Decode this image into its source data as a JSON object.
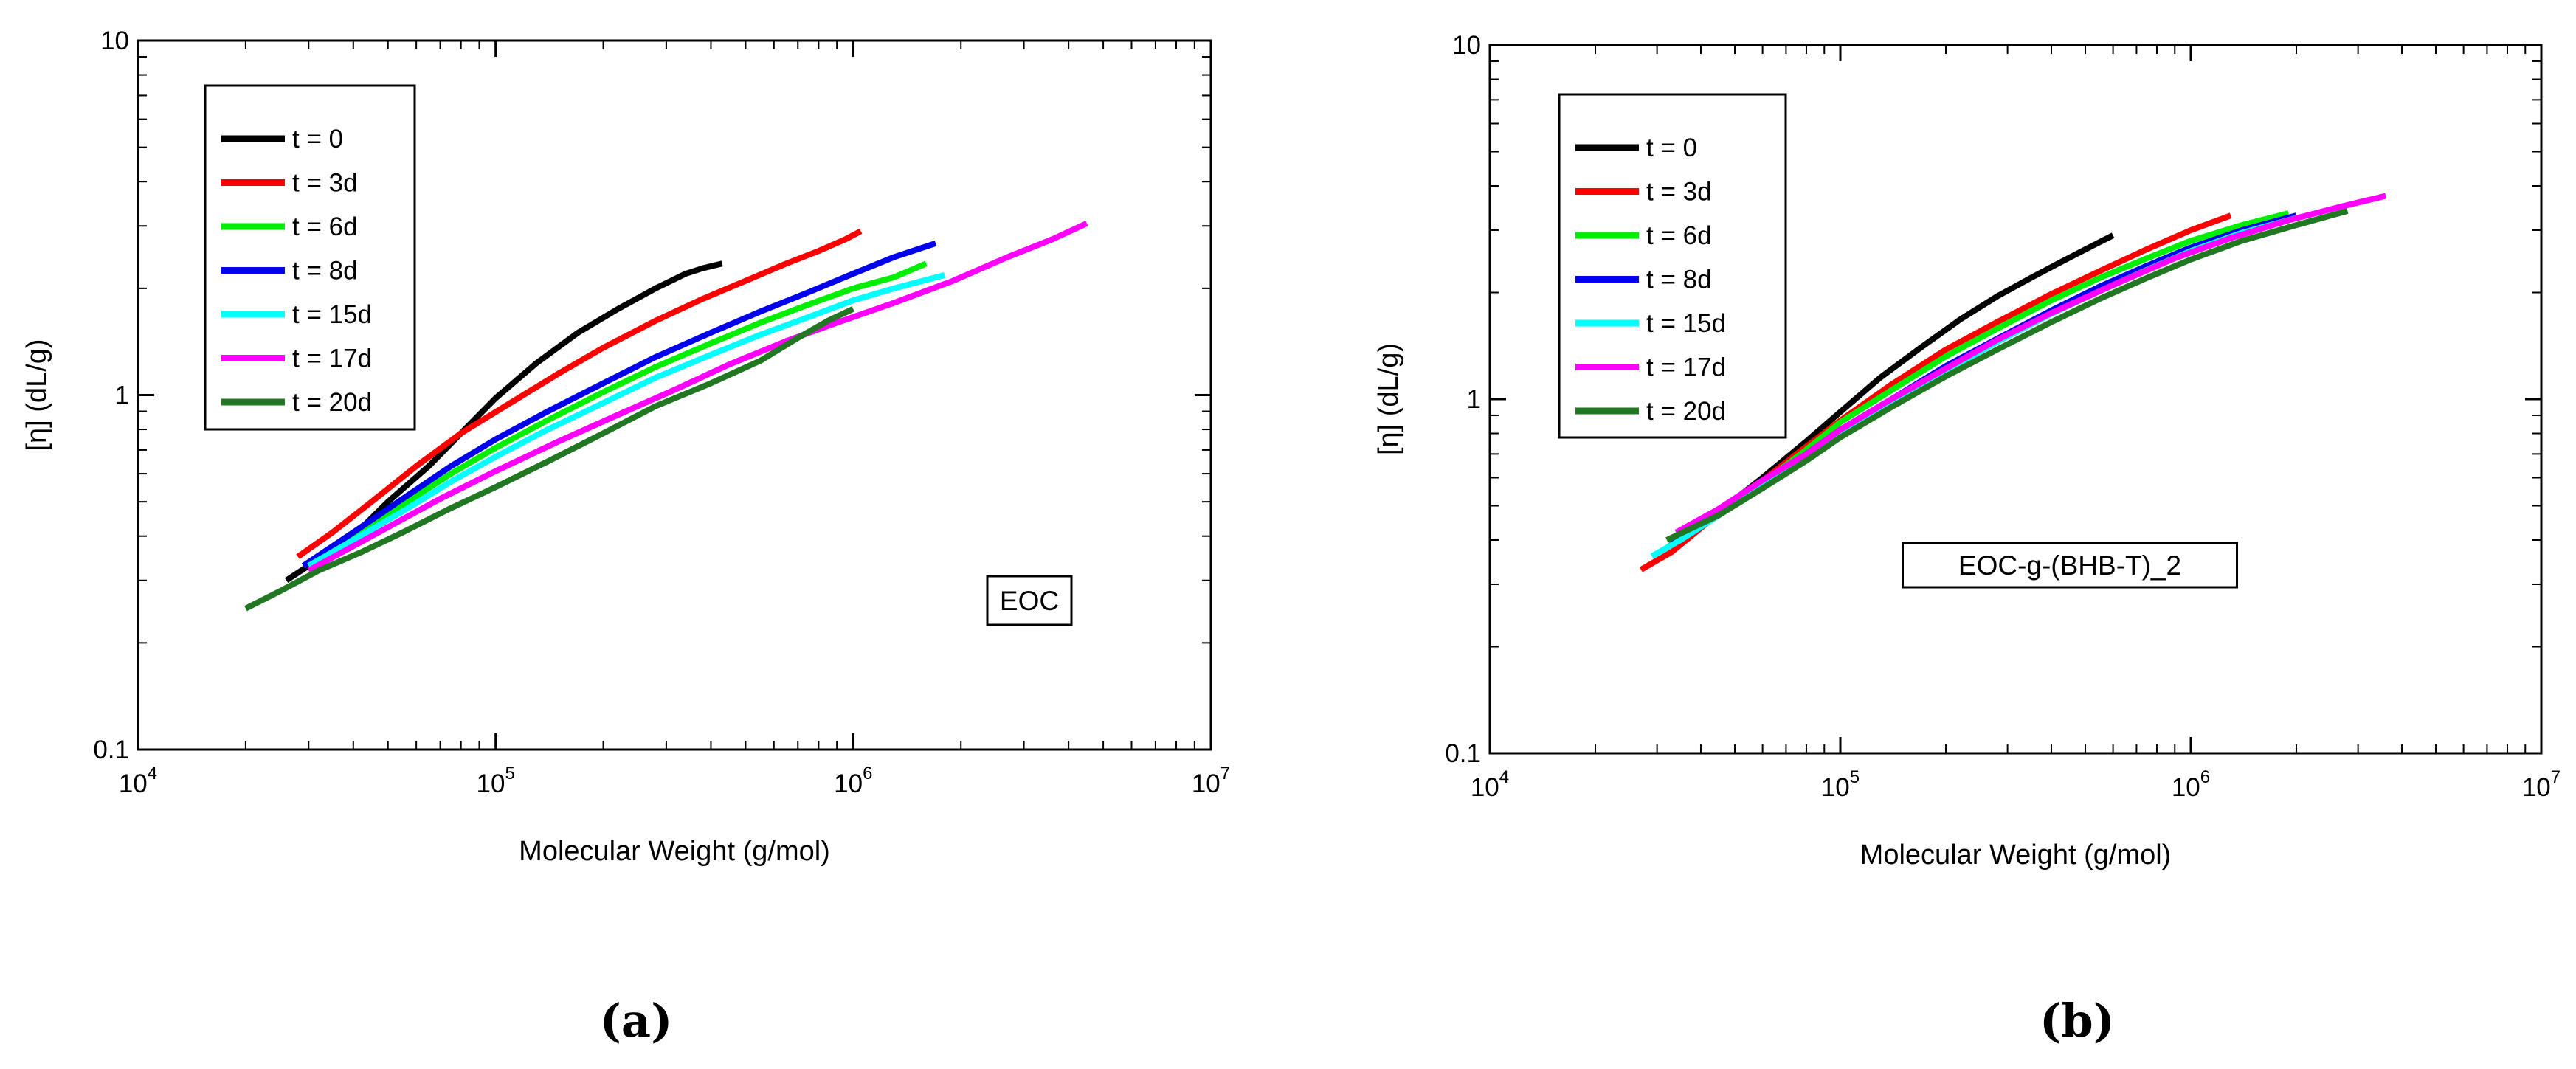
{
  "colors": {
    "t = 0": "#000000",
    "t = 3d": "#ff0000",
    "t = 6d": "#00ee00",
    "t = 8d": "#0000ee",
    "t = 15d": "#00ffff",
    "t = 17d": "#ff00ff",
    "t = 20d": "#227722"
  },
  "chart_data": [
    {
      "type": "line",
      "title": "EOC",
      "panel_label": "(a)",
      "xlabel": "Molecular Weight (g/mol)",
      "ylabel": "[η] (dL/g)",
      "xscale": "log",
      "yscale": "log",
      "xlim": [
        10000,
        10000000
      ],
      "ylim": [
        0.1,
        10
      ],
      "x_ticks": [
        {
          "base": "10",
          "exp": "4",
          "value": 10000
        },
        {
          "base": "10",
          "exp": "5",
          "value": 100000
        },
        {
          "base": "10",
          "exp": "6",
          "value": 1000000
        },
        {
          "base": "10",
          "exp": "7",
          "value": 10000000
        }
      ],
      "y_ticks": [
        {
          "label": "0.1",
          "value": 0.1
        },
        {
          "label": "1",
          "value": 1
        },
        {
          "label": "10",
          "value": 10
        }
      ],
      "legend_position": "top-left",
      "annotation": "EOC",
      "series": [
        {
          "name": "t = 0",
          "x": [
            26000,
            30000,
            34000,
            40000,
            50000,
            65000,
            80000,
            100000,
            130000,
            170000,
            220000,
            280000,
            340000,
            380000,
            430000
          ],
          "y": [
            0.3,
            0.33,
            0.36,
            0.4,
            0.5,
            0.63,
            0.78,
            0.98,
            1.23,
            1.5,
            1.75,
            2.0,
            2.2,
            2.28,
            2.35
          ]
        },
        {
          "name": "t = 3d",
          "x": [
            28000,
            35000,
            45000,
            60000,
            80000,
            110000,
            150000,
            200000,
            280000,
            380000,
            500000,
            650000,
            800000,
            950000,
            1050000
          ],
          "y": [
            0.35,
            0.41,
            0.5,
            0.63,
            0.78,
            0.95,
            1.15,
            1.36,
            1.62,
            1.87,
            2.1,
            2.35,
            2.55,
            2.75,
            2.9
          ]
        },
        {
          "name": "t = 6d",
          "x": [
            29000,
            40000,
            55000,
            75000,
            100000,
            140000,
            200000,
            280000,
            400000,
            550000,
            750000,
            1000000,
            1300000,
            1600000
          ],
          "y": [
            0.33,
            0.4,
            0.49,
            0.6,
            0.71,
            0.85,
            1.02,
            1.2,
            1.4,
            1.6,
            1.8,
            2.0,
            2.15,
            2.35
          ]
        },
        {
          "name": "t = 8d",
          "x": [
            29000,
            40000,
            55000,
            75000,
            100000,
            140000,
            200000,
            280000,
            400000,
            550000,
            750000,
            1000000,
            1300000,
            1700000
          ],
          "y": [
            0.33,
            0.41,
            0.51,
            0.63,
            0.75,
            0.9,
            1.08,
            1.28,
            1.5,
            1.72,
            1.95,
            2.2,
            2.45,
            2.68
          ]
        },
        {
          "name": "t = 15d",
          "x": [
            30000,
            40000,
            55000,
            75000,
            100000,
            140000,
            200000,
            280000,
            400000,
            550000,
            750000,
            1000000,
            1300000,
            1800000
          ],
          "y": [
            0.33,
            0.39,
            0.47,
            0.57,
            0.67,
            0.8,
            0.95,
            1.12,
            1.3,
            1.48,
            1.66,
            1.85,
            2.0,
            2.18
          ]
        },
        {
          "name": "t = 17d",
          "x": [
            30000,
            45000,
            70000,
            100000,
            150000,
            220000,
            320000,
            450000,
            650000,
            900000,
            1300000,
            1900000,
            2700000,
            3600000,
            4500000
          ],
          "y": [
            0.32,
            0.4,
            0.51,
            0.61,
            0.74,
            0.88,
            1.04,
            1.22,
            1.42,
            1.6,
            1.82,
            2.1,
            2.45,
            2.75,
            3.05
          ]
        },
        {
          "name": "t = 20d",
          "x": [
            20000,
            25000,
            32000,
            42000,
            55000,
            75000,
            100000,
            140000,
            200000,
            280000,
            400000,
            550000,
            700000,
            850000,
            1000000
          ],
          "y": [
            0.25,
            0.28,
            0.32,
            0.36,
            0.41,
            0.48,
            0.55,
            0.65,
            0.78,
            0.93,
            1.08,
            1.25,
            1.45,
            1.62,
            1.75
          ]
        }
      ]
    },
    {
      "type": "line",
      "title": "EOC-g-(BHB-T)_2",
      "panel_label": "(b)",
      "xlabel": "Molecular Weight (g/mol)",
      "ylabel": "[η] (dL/g)",
      "xscale": "log",
      "yscale": "log",
      "xlim": [
        10000,
        10000000
      ],
      "ylim": [
        0.1,
        10
      ],
      "x_ticks": [
        {
          "base": "10",
          "exp": "4",
          "value": 10000
        },
        {
          "base": "10",
          "exp": "5",
          "value": 100000
        },
        {
          "base": "10",
          "exp": "6",
          "value": 1000000
        },
        {
          "base": "10",
          "exp": "7",
          "value": 10000000
        }
      ],
      "y_ticks": [
        {
          "label": "0.1",
          "value": 0.1
        },
        {
          "label": "1",
          "value": 1
        },
        {
          "label": "10",
          "value": 10
        }
      ],
      "legend_position": "top-left",
      "annotation": "EOC-g-(BHB-T)_2",
      "series": [
        {
          "name": "t = 0",
          "x": [
            32000,
            45000,
            60000,
            80000,
            100000,
            130000,
            170000,
            220000,
            280000,
            350000,
            430000,
            520000,
            600000
          ],
          "y": [
            0.38,
            0.48,
            0.6,
            0.76,
            0.92,
            1.15,
            1.4,
            1.68,
            1.95,
            2.2,
            2.45,
            2.7,
            2.9
          ]
        },
        {
          "name": "t = 3d",
          "x": [
            27000,
            33000,
            42000,
            55000,
            75000,
            100000,
            140000,
            200000,
            280000,
            400000,
            550000,
            750000,
            1000000,
            1300000
          ],
          "y": [
            0.33,
            0.37,
            0.45,
            0.55,
            0.7,
            0.87,
            1.1,
            1.38,
            1.65,
            1.98,
            2.3,
            2.65,
            3.0,
            3.3
          ]
        },
        {
          "name": "t = 6d",
          "x": [
            32000,
            45000,
            60000,
            80000,
            100000,
            140000,
            200000,
            280000,
            400000,
            550000,
            750000,
            1000000,
            1400000,
            1900000
          ],
          "y": [
            0.38,
            0.47,
            0.58,
            0.72,
            0.86,
            1.06,
            1.32,
            1.58,
            1.9,
            2.2,
            2.5,
            2.8,
            3.1,
            3.35
          ]
        },
        {
          "name": "t = 8d",
          "x": [
            33000,
            45000,
            60000,
            80000,
            100000,
            140000,
            200000,
            280000,
            400000,
            550000,
            750000,
            1000000,
            1400000,
            2000000
          ],
          "y": [
            0.39,
            0.47,
            0.57,
            0.7,
            0.82,
            1.0,
            1.24,
            1.48,
            1.78,
            2.08,
            2.38,
            2.68,
            3.0,
            3.3
          ]
        },
        {
          "name": "t = 15d",
          "x": [
            29000,
            35000,
            45000,
            60000,
            80000,
            100000,
            140000,
            200000,
            280000,
            400000,
            550000,
            750000,
            1000000,
            1400000,
            2000000
          ],
          "y": [
            0.36,
            0.4,
            0.47,
            0.57,
            0.68,
            0.8,
            0.98,
            1.2,
            1.45,
            1.74,
            2.02,
            2.32,
            2.62,
            2.95,
            3.25
          ]
        },
        {
          "name": "t = 17d",
          "x": [
            34000,
            45000,
            60000,
            80000,
            100000,
            140000,
            200000,
            280000,
            400000,
            600000,
            900000,
            1300000,
            1900000,
            2700000,
            3600000
          ],
          "y": [
            0.42,
            0.49,
            0.59,
            0.7,
            0.82,
            1.0,
            1.22,
            1.47,
            1.75,
            2.1,
            2.5,
            2.85,
            3.2,
            3.5,
            3.75
          ]
        },
        {
          "name": "t = 20d",
          "x": [
            32000,
            45000,
            60000,
            80000,
            100000,
            140000,
            200000,
            280000,
            400000,
            550000,
            750000,
            1000000,
            1400000,
            2000000,
            2800000
          ],
          "y": [
            0.4,
            0.47,
            0.56,
            0.67,
            0.78,
            0.95,
            1.16,
            1.38,
            1.65,
            1.92,
            2.2,
            2.48,
            2.8,
            3.1,
            3.4
          ]
        }
      ]
    }
  ]
}
